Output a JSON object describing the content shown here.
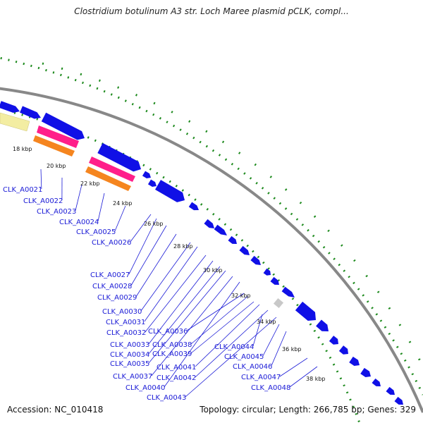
{
  "title": "Clostridium botulinum A3 str. Loch Maree plasmid pCLK, compl...",
  "footer": {
    "accession": "Accession: NC_010418",
    "summary": "Topology: circular; Length: 266,785 bp; Genes: 329"
  },
  "ticks": [
    "18 kbp",
    "20 kbp",
    "22 kbp",
    "24 kbp",
    "26 kbp",
    "28 kbp",
    "30 kbp",
    "32 kbp",
    "34 kbp",
    "36 kbp",
    "38 kbp"
  ],
  "genes": [
    "CLK_A0021",
    "CLK_A0022",
    "CLK_A0023",
    "CLK_A0024",
    "CLK_A0025",
    "CLK_A0026",
    "CLK_A0027",
    "CLK_A0028",
    "CLK_A0029",
    "CLK_A0030",
    "CLK_A0031",
    "CLK_A0032",
    "CLK_A0036",
    "CLK_A0033",
    "CLK_A0038",
    "CLK_A0034",
    "CLK_A0039",
    "CLK_A0035",
    "CLK_A0041",
    "CLK_A0037",
    "CLK_A0042",
    "CLK_A0040",
    "CLK_A0043",
    "CLK_A0044",
    "CLK_A0045",
    "CLK_A0046",
    "CLK_A0047",
    "CLK_A0048"
  ],
  "colors": {
    "backbone": "#888888",
    "cds": "#1010e6",
    "rrna": "#ff1f8a",
    "trna": "#f5851f",
    "misc": "#f3eda2",
    "gap": "#c8c8c8",
    "gc_skew": "#1d8a1d",
    "label": "#1a1ad6"
  }
}
